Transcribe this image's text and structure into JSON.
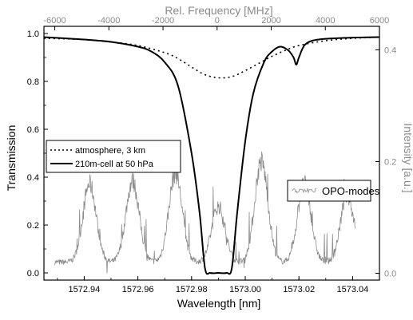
{
  "chart_data": {
    "type": "line",
    "x_axis": {
      "label": "Wavelength  [nm]",
      "range": [
        1572.925,
        1573.05
      ],
      "ticks": [
        1572.94,
        1572.96,
        1572.98,
        1573.0,
        1573.02,
        1573.04
      ],
      "tick_labels": [
        "1572.94",
        "1572.96",
        "1572.98",
        "1573.00",
        "1573.02",
        "1573.04"
      ]
    },
    "x2_axis": {
      "label": "Rel. Frequency  [MHz]",
      "range": [
        -6400,
        6000
      ],
      "ticks": [
        -6000,
        -4000,
        -2000,
        0,
        2000,
        4000,
        6000
      ],
      "tick_labels": [
        "-6000",
        "-4000",
        "-2000",
        "0",
        "2000",
        "4000",
        "6000"
      ],
      "color": "#8a8a8a"
    },
    "y_axis": {
      "label": "Transmission",
      "range": [
        -0.03,
        1.03
      ],
      "ticks": [
        0.0,
        0.2,
        0.4,
        0.6,
        0.8,
        1.0
      ],
      "tick_labels": [
        "0.0",
        "0.2",
        "0.4",
        "0.6",
        "0.8",
        "1.0"
      ]
    },
    "y2_axis": {
      "label": "Intensity  [a.u.]",
      "range": [
        -0.012,
        0.442
      ],
      "ticks": [
        0.0,
        0.2,
        0.4
      ],
      "tick_labels": [
        "0.0",
        "0.2",
        "0.4"
      ],
      "color": "#8a8a8a"
    },
    "series": [
      {
        "name": "atmosphere, 3 km",
        "style": "dotted",
        "color": "#000000",
        "x": [
          1572.925,
          1572.94,
          1572.95,
          1572.96,
          1572.97,
          1572.975,
          1572.98,
          1572.985,
          1572.99,
          1572.995,
          1573.0,
          1573.005,
          1573.01,
          1573.015,
          1573.02,
          1573.03,
          1573.04,
          1573.05
        ],
        "y": [
          0.98,
          0.975,
          0.965,
          0.95,
          0.92,
          0.895,
          0.86,
          0.828,
          0.815,
          0.82,
          0.845,
          0.875,
          0.905,
          0.93,
          0.95,
          0.97,
          0.98,
          0.985
        ]
      },
      {
        "name": "210m-cell at 50 hPa",
        "style": "solid",
        "color": "#000000",
        "x": [
          1572.925,
          1572.94,
          1572.95,
          1572.96,
          1572.965,
          1572.97,
          1572.975,
          1572.98,
          1572.983,
          1572.985,
          1572.987,
          1572.99,
          1572.993,
          1572.995,
          1572.997,
          1573.0,
          1573.003,
          1573.007,
          1573.01,
          1573.013,
          1573.016,
          1573.018,
          1573.019,
          1573.02,
          1573.022,
          1573.025,
          1573.03,
          1573.04,
          1573.05
        ],
        "y": [
          0.985,
          0.975,
          0.965,
          0.945,
          0.925,
          0.88,
          0.78,
          0.5,
          0.25,
          0.02,
          0.0,
          0.0,
          0.0,
          0.02,
          0.25,
          0.55,
          0.75,
          0.88,
          0.925,
          0.945,
          0.93,
          0.9,
          0.87,
          0.9,
          0.95,
          0.97,
          0.978,
          0.983,
          0.985
        ]
      }
    ],
    "series2": [
      {
        "name": "OPO-modes",
        "style": "noisy-line",
        "color": "#8a8a8a",
        "peaks_x": [
          1572.942,
          1572.958,
          1572.974,
          1572.99,
          1573.006,
          1573.022,
          1573.038
        ],
        "peaks_y": [
          0.16,
          0.165,
          0.18,
          0.12,
          0.2,
          0.16,
          0.14
        ],
        "peak_width": 0.0035,
        "baseline": 0.02,
        "x_start": 1572.929,
        "x_end": 1573.041
      }
    ],
    "legend": [
      {
        "label": "atmosphere, 3 km",
        "style": "dotted"
      },
      {
        "label": "210m-cell at 50 hPa",
        "style": "solid"
      }
    ],
    "legend2": [
      {
        "label": "OPO-modes",
        "style": "noisy-line"
      }
    ]
  }
}
